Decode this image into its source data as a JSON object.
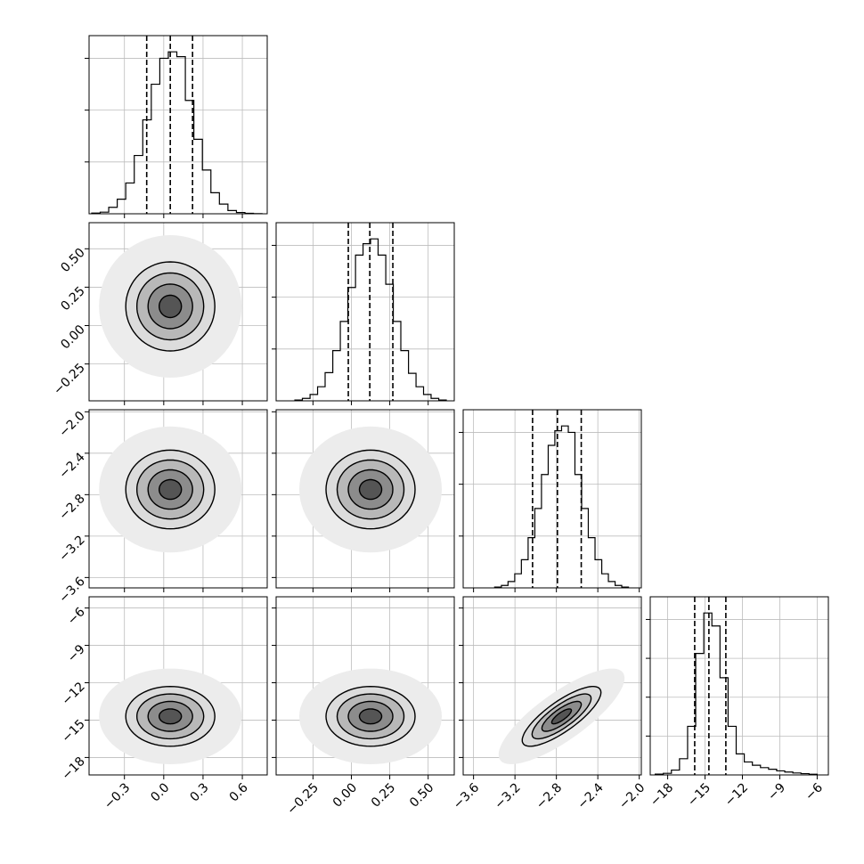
{
  "chart_data": {
    "type": "corner",
    "levels": [
      0.5,
      1,
      1.5,
      2
    ],
    "params": [
      {
        "lim": [
          -0.57,
          0.79
        ],
        "ticks": [
          {
            "value": -0.3,
            "label": "−0.3"
          },
          {
            "value": 0,
            "label": "0.0"
          },
          {
            "value": 0.3,
            "label": "0.3"
          },
          {
            "value": 0.6,
            "label": "0.6"
          }
        ],
        "bins": [
          -0.55,
          -0.485,
          -0.42,
          -0.355,
          -0.29,
          -0.225,
          -0.16,
          -0.095,
          -0.03,
          0.035,
          0.1,
          0.165,
          0.23,
          0.295,
          0.36,
          0.425,
          0.49,
          0.555,
          0.62,
          0.685,
          0.75
        ],
        "counts": [
          0.004,
          0.01,
          0.04,
          0.09,
          0.19,
          0.36,
          0.58,
          0.8,
          0.96,
          1.0,
          0.97,
          0.7,
          0.46,
          0.27,
          0.13,
          0.06,
          0.02,
          0.008,
          0.003,
          0.001
        ],
        "hist_ylim": [
          0,
          1.1
        ],
        "hist_yticks": [
          0.32,
          0.64,
          0.96
        ],
        "quantiles": [
          -0.13,
          0.05,
          0.22
        ],
        "mean": 0.05,
        "sd": 0.17
      },
      {
        "lim": [
          -0.49,
          0.67
        ],
        "ticks": [
          {
            "value": -0.25,
            "label": "−0.25"
          },
          {
            "value": 0,
            "label": "0.00"
          },
          {
            "value": 0.25,
            "label": "0.25"
          },
          {
            "value": 0.5,
            "label": "0.50"
          }
        ],
        "bins": [
          -0.368,
          -0.319,
          -0.269,
          -0.22,
          -0.171,
          -0.121,
          -0.072,
          -0.023,
          0.027,
          0.076,
          0.125,
          0.174,
          0.224,
          0.273,
          0.322,
          0.372,
          0.421,
          0.47,
          0.519,
          0.569,
          0.618
        ],
        "counts": [
          0.005,
          0.015,
          0.039,
          0.087,
          0.174,
          0.31,
          0.49,
          0.7,
          0.9,
          0.97,
          1.0,
          0.9,
          0.72,
          0.49,
          0.31,
          0.17,
          0.087,
          0.039,
          0.015,
          0.005
        ],
        "hist_ylim": [
          0,
          1.1
        ],
        "hist_yticks": [
          0.32,
          0.64,
          0.96
        ],
        "quantiles": [
          -0.02,
          0.12,
          0.27
        ],
        "mean": 0.125,
        "sd": 0.145
      },
      {
        "lim": [
          -3.7,
          -1.98
        ],
        "ticks": [
          {
            "value": -3.6,
            "label": "−3.6"
          },
          {
            "value": -3.2,
            "label": "−3.2"
          },
          {
            "value": -2.8,
            "label": "−2.8"
          },
          {
            "value": -2.4,
            "label": "−2.4"
          },
          {
            "value": -2.0,
            "label": "−2.0"
          }
        ],
        "bins": [
          -3.396,
          -3.331,
          -3.267,
          -3.202,
          -3.138,
          -3.073,
          -3.008,
          -2.944,
          -2.879,
          -2.815,
          -2.75,
          -2.685,
          -2.621,
          -2.556,
          -2.492,
          -2.427,
          -2.362,
          -2.298,
          -2.233,
          -2.169,
          -2.104
        ],
        "counts": [
          0.005,
          0.015,
          0.039,
          0.087,
          0.174,
          0.31,
          0.49,
          0.7,
          0.88,
          0.97,
          1.0,
          0.96,
          0.7,
          0.49,
          0.31,
          0.174,
          0.087,
          0.039,
          0.015,
          0.005
        ],
        "hist_ylim": [
          0,
          1.1
        ],
        "hist_yticks": [
          0.32,
          0.64,
          0.96
        ],
        "quantiles": [
          -3.03,
          -2.79,
          -2.56
        ],
        "mean": -2.75,
        "sd": 0.19
      },
      {
        "lim": [
          -19.4,
          -5.1
        ],
        "ticks": [
          {
            "value": -18,
            "label": "−18"
          },
          {
            "value": -15,
            "label": "−15"
          },
          {
            "value": -12,
            "label": "−12"
          },
          {
            "value": -9,
            "label": "−9"
          },
          {
            "value": -6,
            "label": "−6"
          }
        ],
        "bins": [
          -19,
          -18.35,
          -17.7,
          -17.05,
          -16.4,
          -15.75,
          -15.1,
          -14.45,
          -13.8,
          -13.15,
          -12.5,
          -11.85,
          -11.2,
          -10.55,
          -9.9,
          -9.25,
          -8.6,
          -7.95,
          -7.3,
          -6.65,
          -6
        ],
        "counts": [
          0.005,
          0.01,
          0.03,
          0.1,
          0.3,
          0.75,
          1.0,
          0.92,
          0.6,
          0.3,
          0.13,
          0.08,
          0.06,
          0.045,
          0.035,
          0.025,
          0.018,
          0.012,
          0.008,
          0.004
        ],
        "hist_ylim": [
          0,
          1.1
        ],
        "hist_yticks": [
          0.24,
          0.48,
          0.72,
          0.96
        ],
        "quantiles": [
          -15.83,
          -14.69,
          -13.33
        ],
        "mean": -14.7,
        "sd": 1.2
      }
    ],
    "pairs": [
      {
        "x": 0,
        "y": 1,
        "correlation": 0.0
      },
      {
        "x": 0,
        "y": 2,
        "correlation": 0.0
      },
      {
        "x": 1,
        "y": 2,
        "correlation": 0.0
      },
      {
        "x": 0,
        "y": 3,
        "correlation": 0.0
      },
      {
        "x": 1,
        "y": 3,
        "correlation": 0.0
      },
      {
        "x": 2,
        "y": 3,
        "correlation": 0.8
      }
    ]
  }
}
